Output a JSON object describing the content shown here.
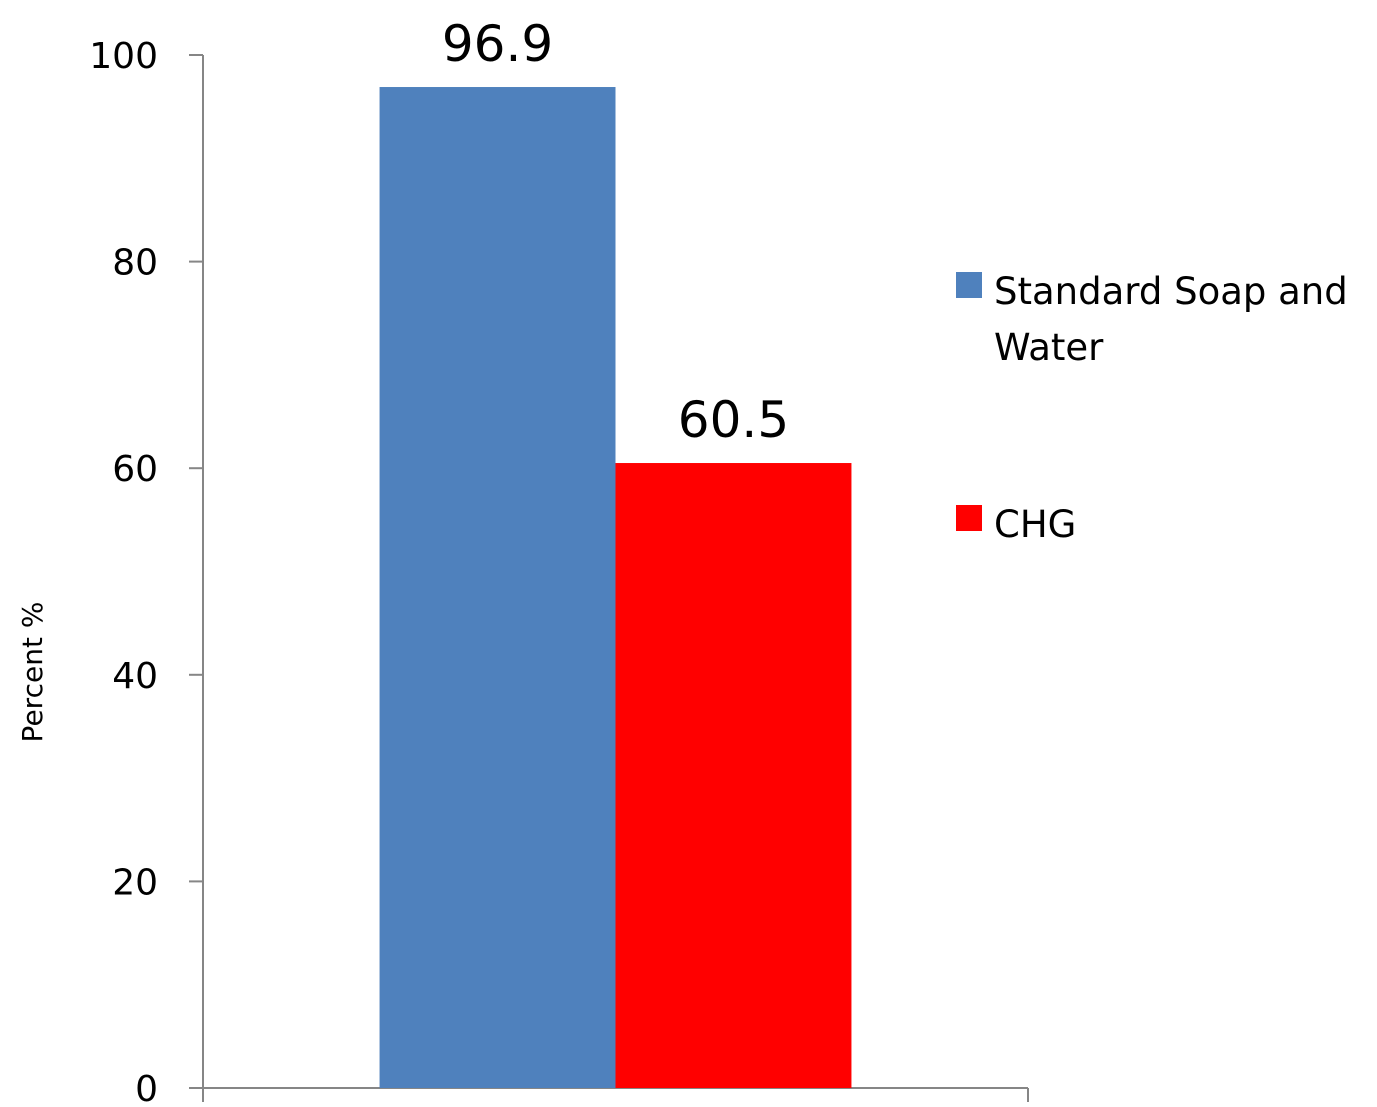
{
  "chart_data": {
    "type": "bar",
    "title": "",
    "xlabel": "",
    "ylabel": "Percent %",
    "ylim": [
      0,
      100
    ],
    "yticks": [
      0,
      20,
      40,
      60,
      80,
      100
    ],
    "grid": false,
    "legend_position": "right",
    "categories": [
      ""
    ],
    "series": [
      {
        "name": "Standard  Soap and Water",
        "legend_lines": [
          "Standard  Soap and",
          "Water"
        ],
        "values": [
          96.9
        ],
        "data_label": "96.9",
        "color": "#4F81BD"
      },
      {
        "name": "CHG",
        "legend_lines": [
          "CHG"
        ],
        "values": [
          60.5
        ],
        "data_label": "60.5",
        "color": "#FF0000"
      }
    ]
  }
}
